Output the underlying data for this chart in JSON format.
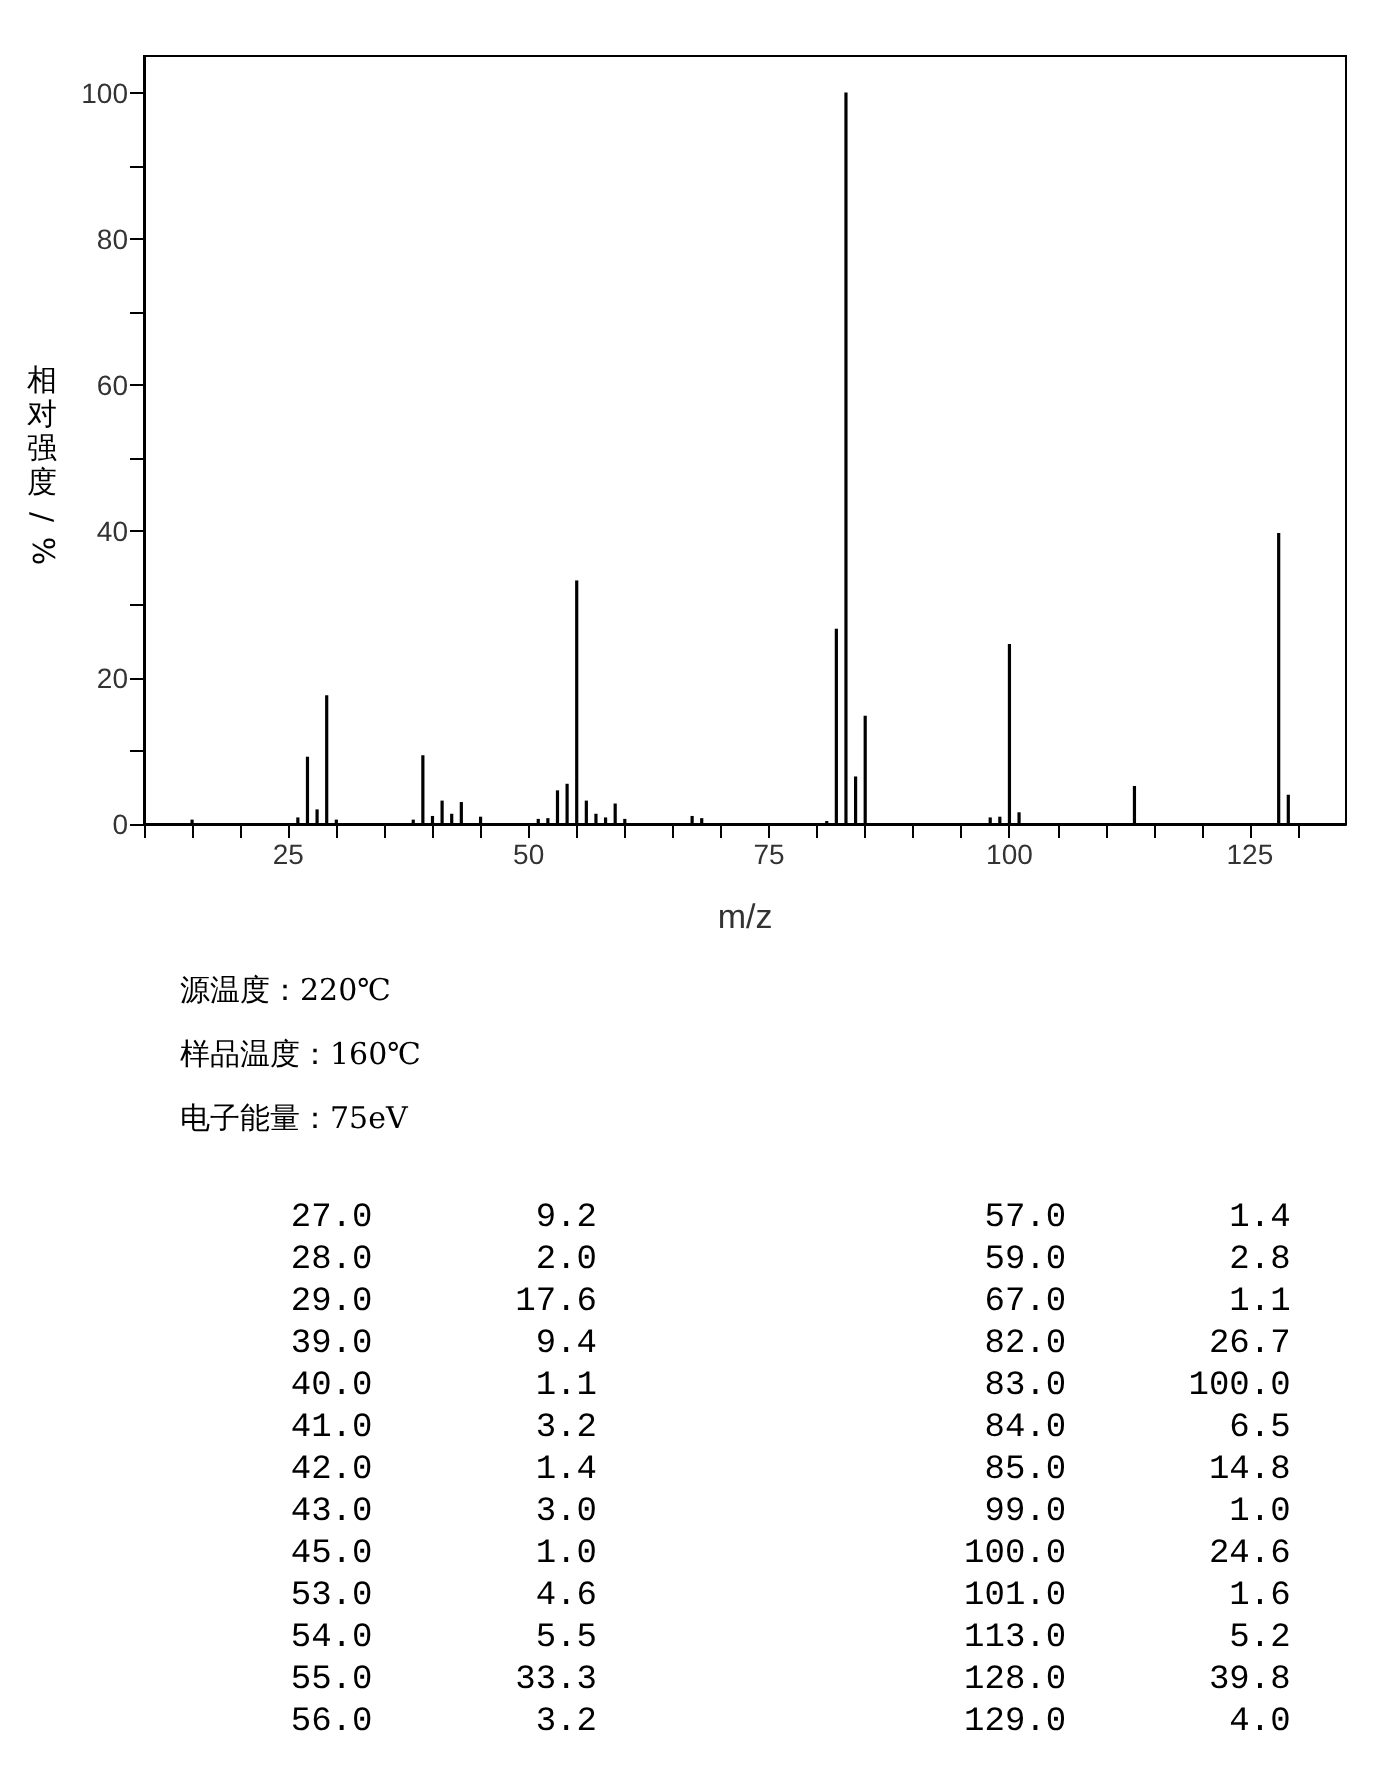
{
  "chart_data": [
    {
      "type": "bar",
      "xlabel": "m/z",
      "ylabel": "相对强度/%",
      "x": [
        15,
        26,
        27,
        28,
        29,
        30,
        38,
        39,
        40,
        41,
        42,
        43,
        45,
        51,
        52,
        53,
        54,
        55,
        56,
        57,
        58,
        59,
        60,
        67,
        68,
        81,
        82,
        83,
        84,
        85,
        98,
        99,
        100,
        101,
        113,
        128,
        129
      ],
      "values": [
        0.6,
        0.9,
        9.2,
        2.0,
        17.6,
        0.6,
        0.6,
        9.4,
        1.1,
        3.2,
        1.4,
        3.0,
        1.0,
        0.7,
        0.8,
        4.6,
        5.5,
        33.3,
        3.2,
        1.4,
        0.9,
        2.8,
        0.7,
        1.1,
        0.8,
        0.4,
        26.7,
        100.0,
        6.5,
        14.8,
        0.9,
        1.0,
        24.6,
        1.6,
        5.2,
        39.8,
        4.0
      ],
      "color": "#000000",
      "xlim": [
        10,
        135
      ],
      "xticks": [
        {
          "value": 10,
          "label": null
        },
        {
          "value": 15,
          "label": null
        },
        {
          "value": 20,
          "label": null
        },
        25,
        {
          "value": 30,
          "label": null
        },
        {
          "value": 35,
          "label": null
        },
        {
          "value": 40,
          "label": null
        },
        {
          "value": 45,
          "label": null
        },
        50,
        {
          "value": 55,
          "label": null
        },
        {
          "value": 60,
          "label": null
        },
        {
          "value": 65,
          "label": null
        },
        {
          "value": 70,
          "label": null
        },
        75,
        {
          "value": 80,
          "label": null
        },
        {
          "value": 85,
          "label": null
        },
        {
          "value": 90,
          "label": null
        },
        {
          "value": 95,
          "label": null
        },
        100,
        {
          "value": 105,
          "label": null
        },
        {
          "value": 110,
          "label": null
        },
        {
          "value": 115,
          "label": null
        },
        {
          "value": 120,
          "label": null
        },
        125,
        {
          "value": 130,
          "label": null
        }
      ],
      "ylim": [
        0,
        105
      ],
      "yticks": [
        0,
        {
          "value": 10,
          "label": null
        },
        20,
        {
          "value": 30,
          "label": null
        },
        40,
        {
          "value": 50,
          "label": null
        },
        60,
        {
          "value": 70,
          "label": null
        },
        80,
        {
          "value": 90,
          "label": null
        },
        100
      ],
      "grid": false,
      "annotations": [
        "源温度：220℃",
        "样品温度：160℃",
        "电子能量：75eV"
      ]
    },
    {
      "type": "other",
      "annotations": [
        "  27.0        9.2                   57.0        1.4",
        "  28.0        2.0                   59.0        2.8",
        "  29.0       17.6                   67.0        1.1",
        "  39.0        9.4                   82.0       26.7",
        "  40.0        1.1                   83.0      100.0",
        "  41.0        3.2                   84.0        6.5",
        "  42.0        1.4                   85.0       14.8",
        "  43.0        3.0                   99.0        1.0",
        "  45.0        1.0                  100.0       24.6",
        "  53.0        4.6                  101.0        1.6",
        "  54.0        5.5                  113.0        5.2",
        "  55.0       33.3                  128.0       39.8",
        "  56.0        3.2                  129.0        4.0"
      ]
    }
  ]
}
